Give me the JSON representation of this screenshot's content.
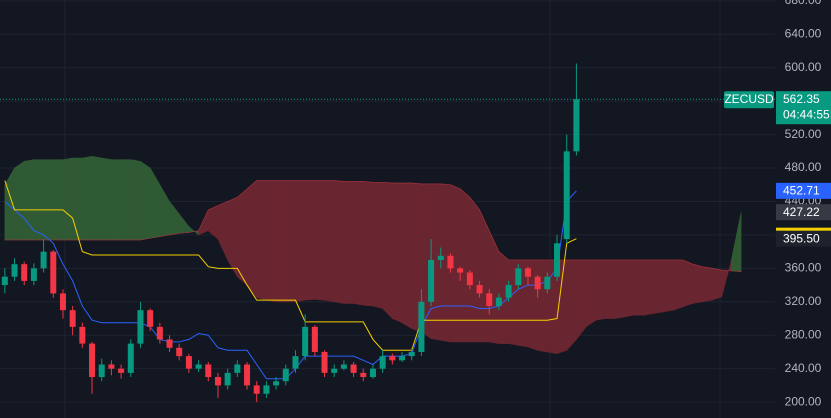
{
  "chart_data": {
    "type": "candlestick",
    "symbol": "ZECUSD",
    "countdown": "04:44:55",
    "xlim": [
      -0.5,
      79.5
    ],
    "ylim": [
      181,
      681
    ],
    "yticks": [
      {
        "value": 200,
        "label": "200.00"
      },
      {
        "value": 240,
        "label": "240.00"
      },
      {
        "value": 280,
        "label": "280.00"
      },
      {
        "value": 320,
        "label": "320.00"
      },
      {
        "value": 360,
        "label": "360.00"
      },
      {
        "value": 400,
        "label": "400.00"
      },
      {
        "value": 440,
        "label": "440.00"
      },
      {
        "value": 480,
        "label": "480.00"
      },
      {
        "value": 520,
        "label": "520.00"
      },
      {
        "value": 560,
        "label": "560.00"
      },
      {
        "value": 600,
        "label": "600.00"
      },
      {
        "value": 640,
        "label": "640.00"
      },
      {
        "value": 680,
        "label": "680.00"
      }
    ],
    "grid": true,
    "up_color": "#089981",
    "down_color": "#f23645",
    "x": [
      0,
      1,
      2,
      3,
      4,
      5,
      6,
      7,
      8,
      9,
      10,
      11,
      12,
      13,
      14,
      15,
      16,
      17,
      18,
      19,
      20,
      21,
      22,
      23,
      24,
      25,
      26,
      27,
      28,
      29,
      30,
      31,
      32,
      33,
      34,
      35,
      36,
      37,
      38,
      39,
      40,
      41,
      42,
      43,
      44,
      45,
      46,
      47,
      48,
      49,
      50,
      51,
      52,
      53,
      54,
      55,
      56,
      57,
      58,
      59
    ],
    "open": [
      340,
      350,
      365,
      345,
      360,
      380,
      330,
      310,
      290,
      270,
      230,
      245,
      240,
      235,
      270,
      310,
      290,
      275,
      265,
      255,
      240,
      245,
      230,
      220,
      235,
      245,
      220,
      210,
      220,
      225,
      240,
      255,
      290,
      260,
      235,
      240,
      245,
      235,
      230,
      240,
      255,
      250,
      255,
      260,
      320,
      370,
      375,
      360,
      355,
      340,
      330,
      315,
      325,
      340,
      360,
      350,
      335,
      350,
      395,
      500
    ],
    "high": [
      360,
      372,
      368,
      366,
      395,
      382,
      335,
      315,
      295,
      272,
      252,
      250,
      245,
      275,
      320,
      312,
      295,
      280,
      270,
      258,
      250,
      248,
      235,
      240,
      250,
      248,
      225,
      225,
      230,
      245,
      262,
      305,
      292,
      262,
      245,
      250,
      248,
      240,
      245,
      262,
      258,
      260,
      265,
      335,
      395,
      385,
      378,
      362,
      358,
      345,
      335,
      330,
      345,
      365,
      362,
      352,
      355,
      400,
      520,
      605
    ],
    "low": [
      330,
      345,
      340,
      340,
      355,
      325,
      300,
      280,
      265,
      210,
      225,
      232,
      228,
      230,
      265,
      285,
      270,
      260,
      250,
      235,
      236,
      225,
      205,
      215,
      230,
      215,
      200,
      205,
      215,
      220,
      235,
      250,
      255,
      230,
      230,
      238,
      230,
      225,
      228,
      235,
      245,
      248,
      250,
      255,
      315,
      360,
      355,
      345,
      335,
      325,
      305,
      310,
      320,
      335,
      340,
      325,
      330,
      345,
      390,
      495
    ],
    "close": [
      350,
      365,
      345,
      360,
      380,
      330,
      310,
      290,
      270,
      230,
      245,
      240,
      235,
      270,
      310,
      290,
      275,
      265,
      255,
      240,
      245,
      230,
      220,
      235,
      245,
      220,
      210,
      220,
      225,
      240,
      255,
      290,
      260,
      235,
      240,
      245,
      235,
      230,
      240,
      255,
      250,
      255,
      260,
      320,
      370,
      375,
      360,
      355,
      340,
      330,
      315,
      325,
      340,
      360,
      350,
      335,
      350,
      390,
      500,
      562.35
    ],
    "conversion_line": {
      "color": "#2962ff",
      "values": [
        440,
        430,
        420,
        405,
        400,
        390,
        365,
        345,
        315,
        298,
        295,
        295,
        295,
        295,
        295,
        290,
        275,
        272,
        272,
        275,
        282,
        280,
        265,
        262,
        262,
        262,
        245,
        228,
        228,
        228,
        240,
        255,
        255,
        255,
        255,
        255,
        255,
        250,
        245,
        255,
        255,
        255,
        258,
        290,
        312,
        315,
        315,
        315,
        315,
        312,
        312,
        315,
        325,
        335,
        340,
        340,
        345,
        360,
        440,
        452.71
      ]
    },
    "base_line": {
      "color": "#f5d000",
      "values": [
        465,
        430,
        430,
        430,
        430,
        430,
        430,
        420,
        380,
        376,
        376,
        376,
        376,
        376,
        376,
        376,
        376,
        376,
        376,
        376,
        376,
        362,
        360,
        360,
        360,
        340,
        322,
        322,
        322,
        322,
        322,
        296,
        296,
        296,
        296,
        296,
        296,
        296,
        275,
        262,
        262,
        262,
        262,
        298,
        298,
        298,
        298,
        298,
        298,
        298,
        298,
        298,
        298,
        298,
        298,
        298,
        298,
        300,
        390,
        395.5
      ],
      "last_label": "395.50"
    },
    "cloud": {
      "up_color": "#2f5a34",
      "down_color": "#6a2630",
      "edge_color": "#a8323e",
      "x": [
        0,
        1,
        2,
        3,
        4,
        5,
        6,
        7,
        8,
        9,
        10,
        11,
        12,
        13,
        14,
        15,
        16,
        17,
        18,
        19,
        20,
        21,
        22,
        23,
        24,
        25,
        26,
        27,
        28,
        29,
        30,
        31,
        32,
        33,
        34,
        35,
        36,
        37,
        38,
        39,
        40,
        41,
        42,
        43,
        44,
        45,
        46,
        47,
        48,
        49,
        50,
        51,
        52,
        53,
        54,
        55,
        56,
        57,
        58,
        59,
        60,
        61,
        62,
        63,
        64,
        65,
        66,
        67,
        68,
        69,
        70,
        71,
        72,
        73,
        74,
        75,
        76
      ],
      "span_a": [
        460,
        480,
        488,
        490,
        490,
        490,
        490,
        492,
        492,
        494,
        492,
        490,
        490,
        490,
        488,
        480,
        460,
        440,
        425,
        410,
        400,
        405,
        395,
        370,
        350,
        340,
        325,
        322,
        320,
        320,
        320,
        322,
        323,
        322,
        320,
        318,
        318,
        316,
        315,
        312,
        300,
        295,
        288,
        284,
        276,
        274,
        272,
        272,
        272,
        272,
        272,
        270,
        270,
        268,
        266,
        262,
        260,
        258,
        262,
        275,
        290,
        298,
        300,
        300,
        302,
        304,
        304,
        306,
        308,
        310,
        314,
        318,
        320,
        322,
        326,
        370,
        427.22
      ],
      "span_b": [
        394,
        394,
        394,
        394,
        394,
        394,
        394,
        394,
        394,
        394,
        394,
        394,
        394,
        394,
        394,
        396,
        398,
        400,
        402,
        403,
        405,
        430,
        435,
        440,
        445,
        455,
        465,
        465,
        465,
        465,
        465,
        465,
        465,
        465,
        465,
        464,
        464,
        464,
        463,
        463,
        462,
        462,
        462,
        461,
        461,
        461,
        460,
        455,
        445,
        430,
        405,
        380,
        370,
        370,
        370,
        370,
        370,
        370,
        370,
        370,
        370,
        370,
        370,
        370,
        370,
        370,
        370,
        370,
        370,
        370,
        370,
        365,
        362,
        360,
        358,
        357,
        356
      ]
    }
  }
}
